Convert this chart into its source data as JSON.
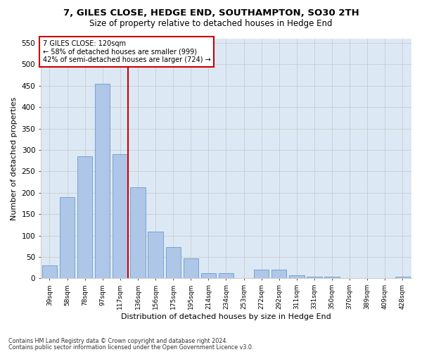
{
  "title": "7, GILES CLOSE, HEDGE END, SOUTHAMPTON, SO30 2TH",
  "subtitle": "Size of property relative to detached houses in Hedge End",
  "xlabel": "Distribution of detached houses by size in Hedge End",
  "ylabel": "Number of detached properties",
  "categories": [
    "39sqm",
    "58sqm",
    "78sqm",
    "97sqm",
    "117sqm",
    "136sqm",
    "156sqm",
    "175sqm",
    "195sqm",
    "214sqm",
    "234sqm",
    "253sqm",
    "272sqm",
    "292sqm",
    "311sqm",
    "331sqm",
    "350sqm",
    "370sqm",
    "389sqm",
    "409sqm",
    "428sqm"
  ],
  "values": [
    30,
    190,
    285,
    455,
    290,
    213,
    110,
    73,
    46,
    12,
    12,
    0,
    20,
    20,
    8,
    4,
    4,
    0,
    0,
    0,
    4
  ],
  "bar_color": "#aec6e8",
  "bar_edge_color": "#5a8fc2",
  "highlight_index": 4,
  "highlight_line_color": "#cc0000",
  "annotation_line1": "7 GILES CLOSE: 120sqm",
  "annotation_line2": "← 58% of detached houses are smaller (999)",
  "annotation_line3": "42% of semi-detached houses are larger (724) →",
  "annotation_box_color": "#ffffff",
  "annotation_box_edge": "#cc0000",
  "ylim": [
    0,
    560
  ],
  "yticks": [
    0,
    50,
    100,
    150,
    200,
    250,
    300,
    350,
    400,
    450,
    500,
    550
  ],
  "grid_color": "#cccccc",
  "background_color": "#dce9f5",
  "footer_line1": "Contains HM Land Registry data © Crown copyright and database right 2024.",
  "footer_line2": "Contains public sector information licensed under the Open Government Licence v3.0.",
  "title_fontsize": 9.5,
  "subtitle_fontsize": 8.5,
  "xlabel_fontsize": 8,
  "ylabel_fontsize": 8
}
